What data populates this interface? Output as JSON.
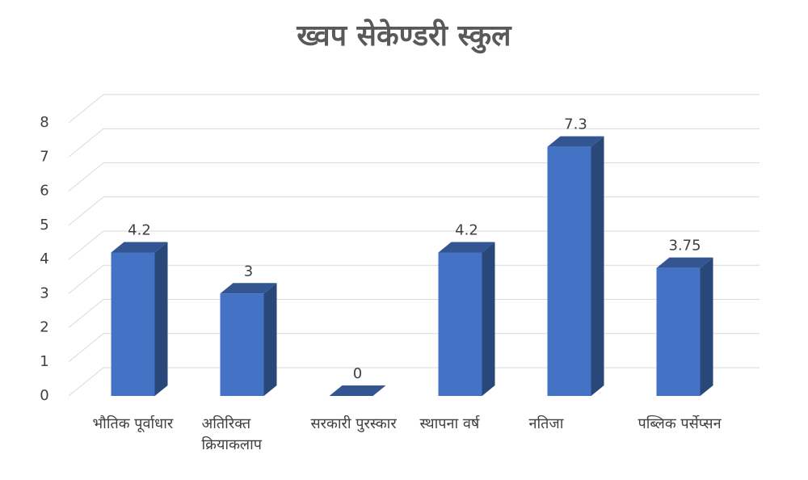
{
  "chart_data": {
    "type": "bar3d",
    "title": "ख्वप सेकेण्डरी स्कुल",
    "categories": [
      "भौतिक पूर्वाधार",
      "अतिरिक्त क्रियाकलाप",
      "सरकारी पुरस्कार",
      "स्थापना वर्ष",
      "नतिजा",
      "पब्लिक पर्सेप्सन"
    ],
    "values": [
      4.2,
      3,
      0,
      4.2,
      7.3,
      3.75
    ],
    "color": "#4472c4",
    "ylim": [
      0,
      8
    ],
    "yticks": [
      0,
      1,
      2,
      3,
      4,
      5,
      6,
      7,
      8
    ],
    "grid": true,
    "data_labels": true
  }
}
